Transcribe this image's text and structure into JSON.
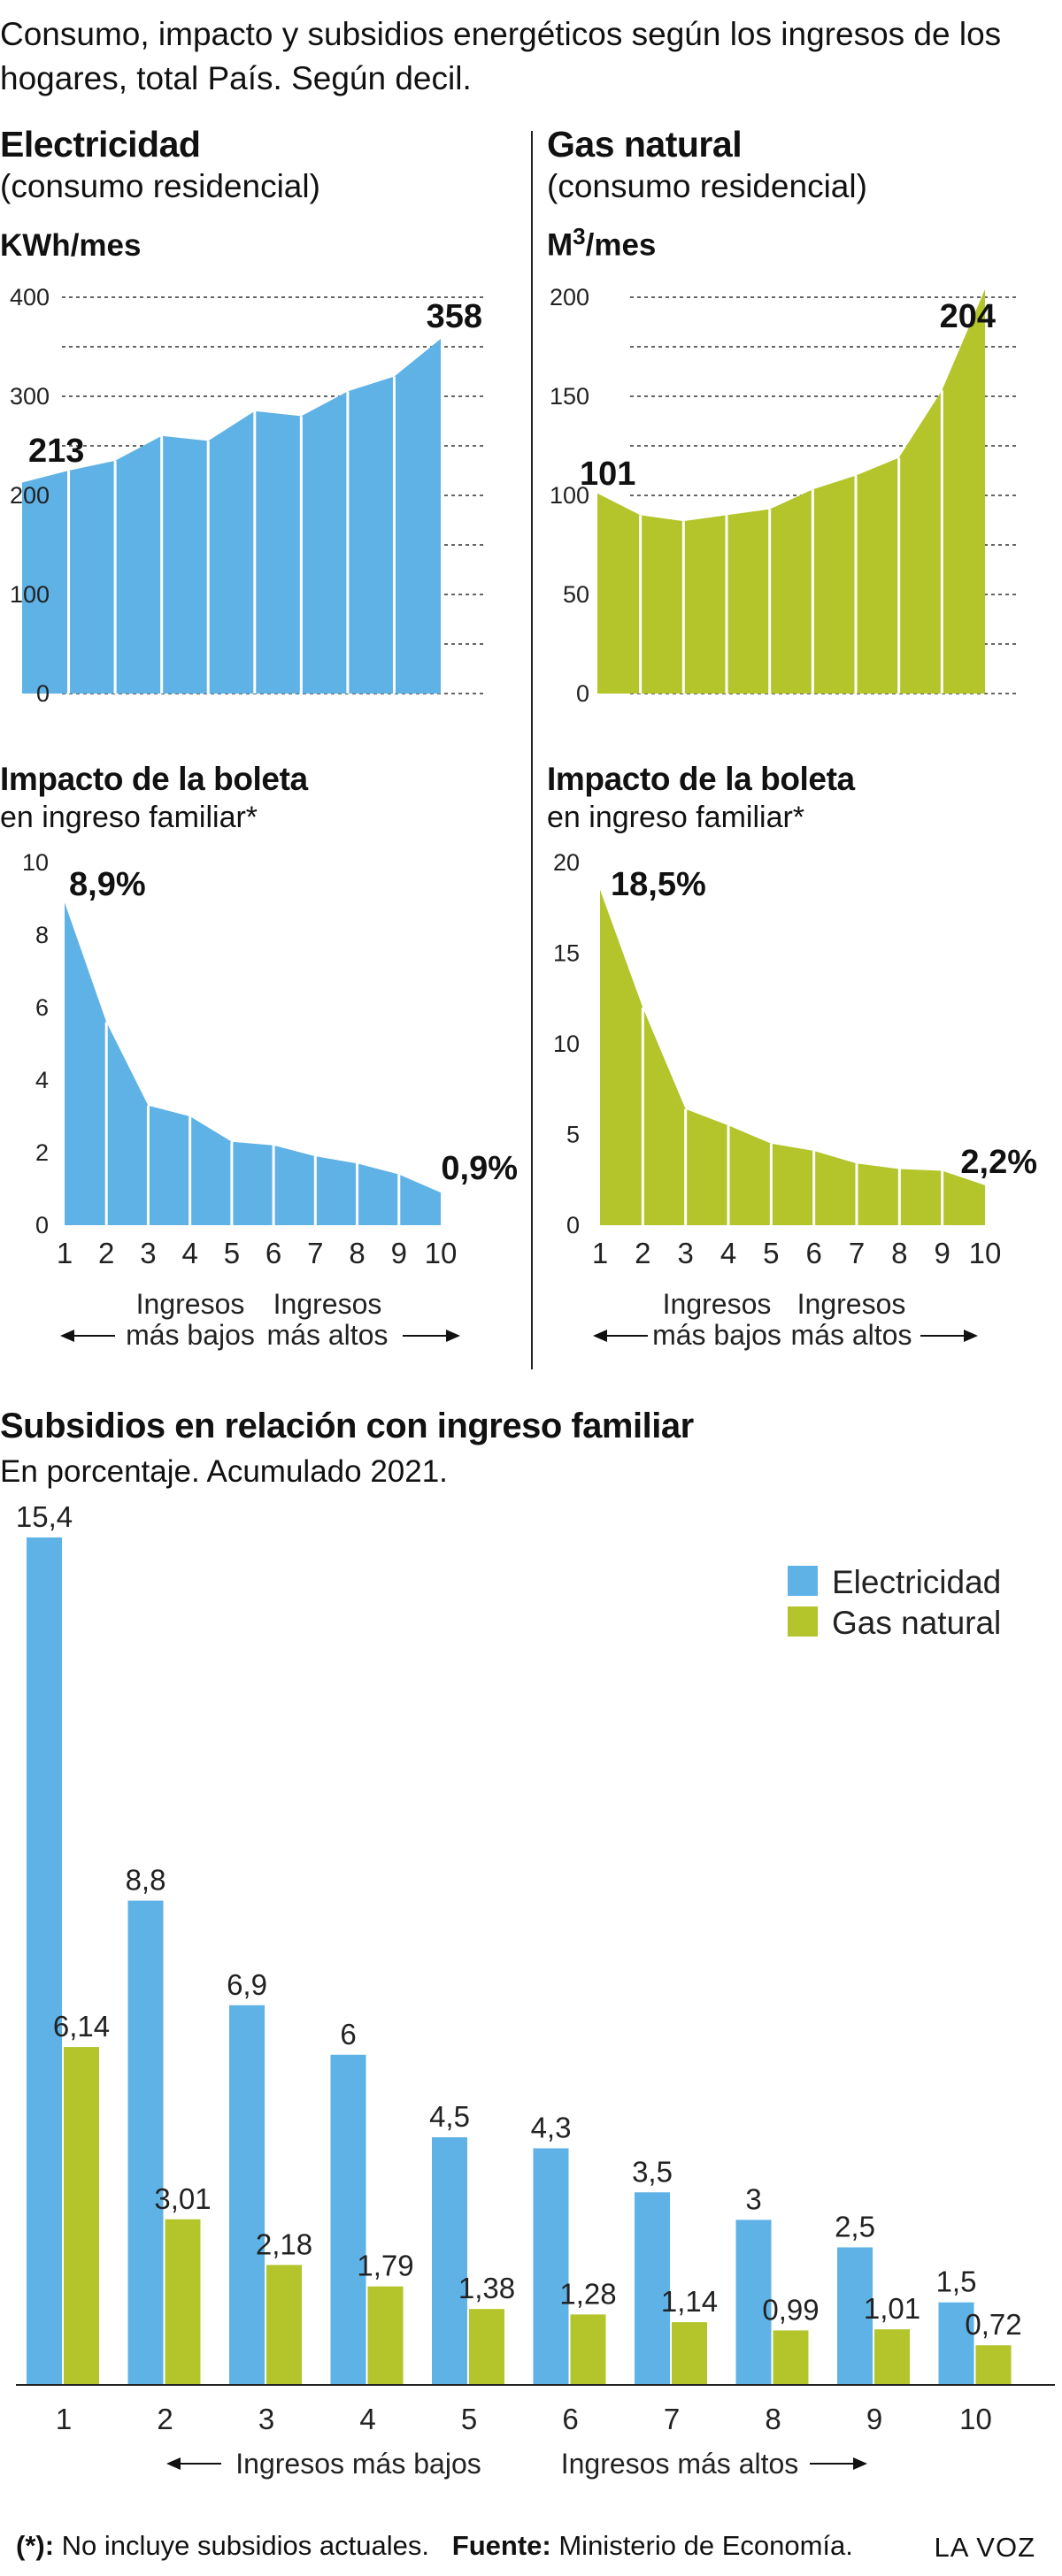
{
  "header": {
    "title": "Consumo, impacto y subsidios energéticos según los ingresos de los hogares, total País. Según decil."
  },
  "colors": {
    "electricidad": "#5fb2e6",
    "gas": "#b3c52a",
    "grid": "#333333"
  },
  "electricidad_consumo": {
    "heading": "Electricidad",
    "subheading": "(consumo residencial)",
    "unit": "KWh/mes",
    "first_label": "213",
    "last_label": "358"
  },
  "gas_consumo": {
    "heading": "Gas natural",
    "subheading": "(consumo residencial)",
    "unit_base": "M",
    "unit_sup": "3",
    "unit_rest": "/mes",
    "first_label": "101",
    "last_label": "204"
  },
  "electricidad_impacto": {
    "heading": "Impacto de la boleta",
    "subheading": "en ingreso familiar*",
    "first_label": "8,9%",
    "last_label": "0,9%"
  },
  "gas_impacto": {
    "heading": "Impacto de la boleta",
    "subheading": "en ingreso familiar*",
    "first_label": "18,5%",
    "last_label": "2,2%"
  },
  "income_notes": {
    "low_1": "Ingresos",
    "low_2": "más bajos",
    "high_1": "Ingresos",
    "high_2": "más altos",
    "low_one_line": "Ingresos más bajos",
    "high_one_line": "Ingresos más altos"
  },
  "subsidios": {
    "heading": "Subsidios en relación con ingreso familiar",
    "subheading": "En porcentaje. Acumulado 2021."
  },
  "footer": {
    "note_key": "(*):",
    "note_text": "No incluye subsidios actuales.",
    "source_key": "Fuente:",
    "source_text": "Ministerio de Economía.",
    "brand": "LA VOZ"
  },
  "chart_data": [
    {
      "type": "area",
      "title": "Electricidad (consumo residencial)",
      "ylabel": "KWh/mes",
      "x": [
        1,
        2,
        3,
        4,
        5,
        6,
        7,
        8,
        9,
        10
      ],
      "values": [
        213,
        225,
        235,
        260,
        255,
        285,
        280,
        305,
        320,
        358
      ],
      "ylim": [
        0,
        400
      ],
      "yticks": [
        "0",
        "100",
        "200",
        "300",
        "400"
      ]
    },
    {
      "type": "area",
      "title": "Gas natural (consumo residencial)",
      "ylabel": "M3/mes",
      "x": [
        1,
        2,
        3,
        4,
        5,
        6,
        7,
        8,
        9,
        10
      ],
      "values": [
        101,
        90,
        87,
        90,
        93,
        103,
        110,
        119,
        153,
        204
      ],
      "ylim": [
        0,
        200
      ],
      "yticks": [
        "0",
        "50",
        "100",
        "150",
        "200"
      ]
    },
    {
      "type": "area",
      "title": "Impacto de la boleta en ingreso familiar* (Electricidad)",
      "x": [
        1,
        2,
        3,
        4,
        5,
        6,
        7,
        8,
        9,
        10
      ],
      "values": [
        8.9,
        5.6,
        3.3,
        3.0,
        2.3,
        2.2,
        1.9,
        1.7,
        1.4,
        0.9
      ],
      "ylim": [
        0,
        10
      ],
      "yticks": [
        "0",
        "2",
        "4",
        "6",
        "8",
        "10"
      ],
      "xticks": [
        "1",
        "2",
        "3",
        "4",
        "5",
        "6",
        "7",
        "8",
        "9",
        "10"
      ]
    },
    {
      "type": "area",
      "title": "Impacto de la boleta en ingreso familiar* (Gas natural)",
      "x": [
        1,
        2,
        3,
        4,
        5,
        6,
        7,
        8,
        9,
        10
      ],
      "values": [
        18.5,
        12.0,
        6.4,
        5.5,
        4.5,
        4.1,
        3.4,
        3.1,
        3.0,
        2.2
      ],
      "ylim": [
        0,
        20
      ],
      "yticks": [
        "0",
        "5",
        "10",
        "15",
        "20"
      ],
      "xticks": [
        "1",
        "2",
        "3",
        "4",
        "5",
        "6",
        "7",
        "8",
        "9",
        "10"
      ]
    },
    {
      "type": "bar",
      "title": "Subsidios en relación con ingreso familiar",
      "categories": [
        "1",
        "2",
        "3",
        "4",
        "5",
        "6",
        "7",
        "8",
        "9",
        "10"
      ],
      "series": [
        {
          "name": "Electricidad",
          "values": [
            15.4,
            8.8,
            6.9,
            6,
            4.5,
            4.3,
            3.5,
            3,
            2.5,
            1.5
          ],
          "labels": [
            "15,4",
            "8,8",
            "6,9",
            "6",
            "4,5",
            "4,3",
            "3,5",
            "3",
            "2,5",
            "1,5"
          ]
        },
        {
          "name": "Gas natural",
          "values": [
            6.14,
            3.01,
            2.18,
            1.79,
            1.38,
            1.28,
            1.14,
            0.99,
            1.01,
            0.72
          ],
          "labels": [
            "6,14",
            "3,01",
            "2,18",
            "1,79",
            "1,38",
            "1,28",
            "1,14",
            "0,99",
            "1,01",
            "0,72"
          ]
        }
      ],
      "ylim": [
        0,
        15.4
      ],
      "legend": "top-right"
    }
  ]
}
